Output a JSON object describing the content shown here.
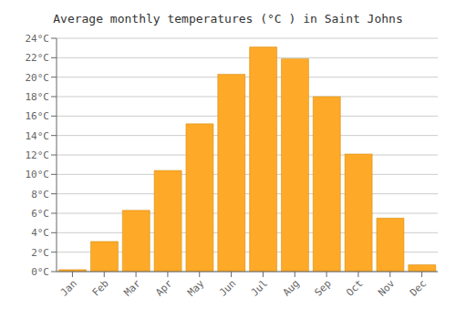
{
  "chart_data": {
    "type": "bar",
    "title": "Average monthly temperatures (°C ) in Saint Johns",
    "categories": [
      "Jan",
      "Feb",
      "Mar",
      "Apr",
      "May",
      "Jun",
      "Jul",
      "Aug",
      "Sep",
      "Oct",
      "Nov",
      "Dec"
    ],
    "values": [
      0.2,
      3.1,
      6.3,
      10.4,
      15.2,
      20.3,
      23.1,
      21.9,
      18.0,
      12.1,
      5.5,
      0.7
    ],
    "color": "#FFA928",
    "ylim": [
      0,
      24
    ],
    "yticks": [
      {
        "value": 0,
        "label": "0°C"
      },
      {
        "value": 2,
        "label": "2°C"
      },
      {
        "value": 4,
        "label": "4°C"
      },
      {
        "value": 6,
        "label": "6°C"
      },
      {
        "value": 8,
        "label": "8°C"
      },
      {
        "value": 10,
        "label": "10°C"
      },
      {
        "value": 12,
        "label": "12°C"
      },
      {
        "value": 14,
        "label": "14°C"
      },
      {
        "value": 16,
        "label": "16°C"
      },
      {
        "value": 18,
        "label": "18°C"
      },
      {
        "value": 20,
        "label": "20°C"
      },
      {
        "value": 22,
        "label": "22°C"
      },
      {
        "value": 24,
        "label": "24°C"
      }
    ],
    "grid": true
  }
}
